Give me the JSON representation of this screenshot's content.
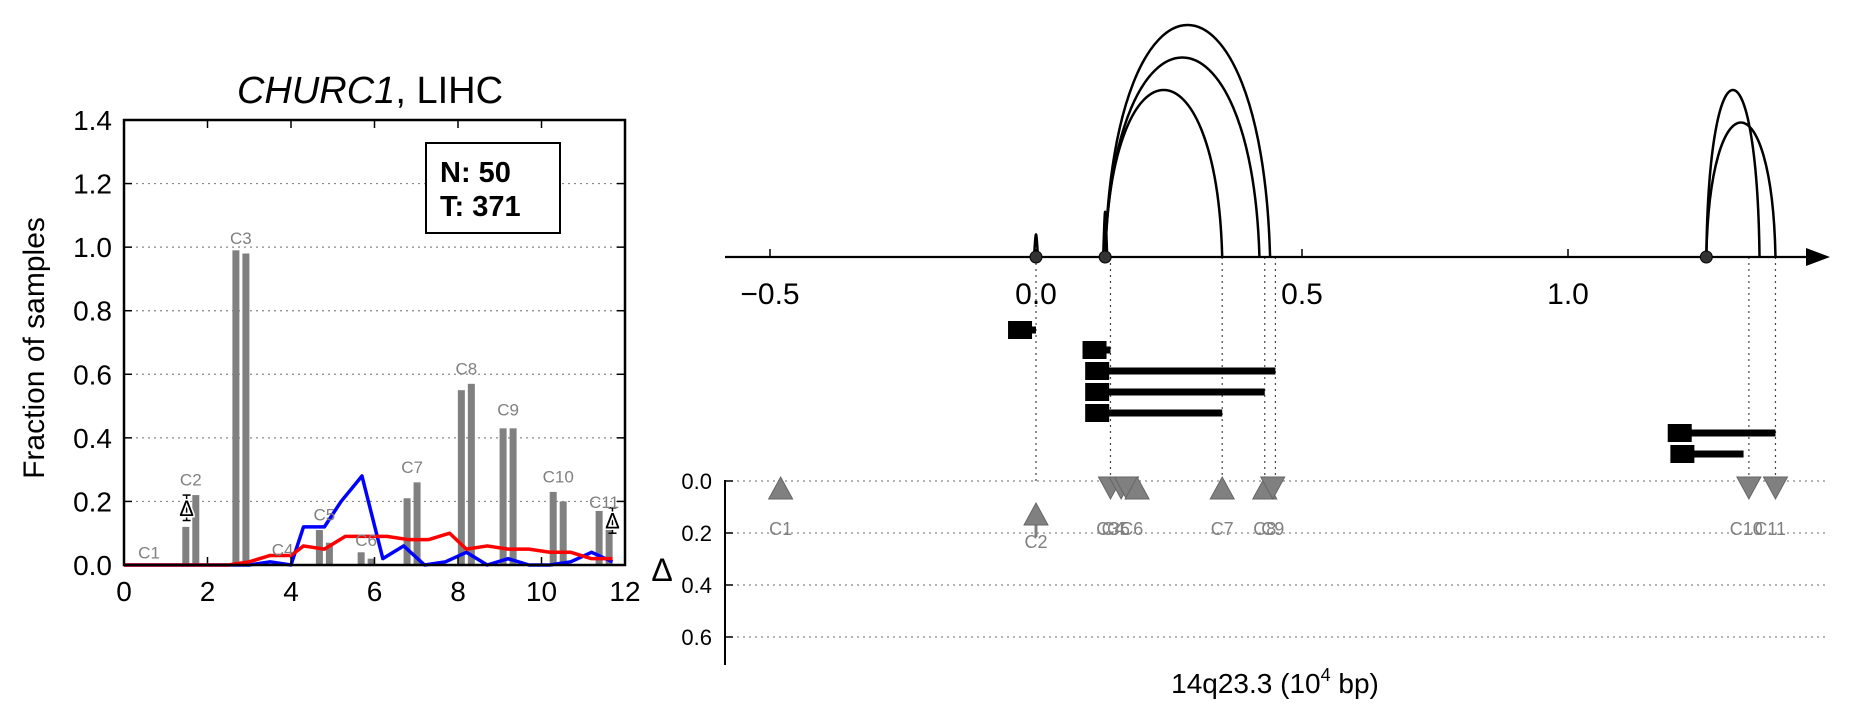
{
  "chart_data": [
    {
      "type": "bar",
      "title_gene": "CHURC1",
      "title_rest": ", LIHC",
      "ylabel": "Fraction of samples",
      "xlim": [
        0,
        12
      ],
      "ylim": [
        0,
        1.4
      ],
      "xticks": [
        "0",
        "2",
        "4",
        "6",
        "8",
        "10",
        "12"
      ],
      "yticks": [
        "0.0",
        "0.2",
        "0.4",
        "0.6",
        "0.8",
        "1.0",
        "1.2",
        "1.4"
      ],
      "grid": true,
      "legend_box": {
        "n_label": "N: 50",
        "t_label": "T: 371"
      },
      "categories": [
        "C1",
        "C2",
        "C3",
        "C4",
        "C5",
        "C6",
        "C7",
        "C8",
        "C9",
        "C10",
        "C11"
      ],
      "bars": [
        {
          "label": "C1",
          "x": 0.6,
          "n": 0.0,
          "t": 0.0,
          "label_y": 0.02
        },
        {
          "label": "C2",
          "x": 1.6,
          "n": 0.12,
          "t": 0.22,
          "label_y": 0.25
        },
        {
          "label": "C3",
          "x": 2.8,
          "n": 0.99,
          "t": 0.98,
          "label_y": 1.01
        },
        {
          "label": "C4",
          "x": 3.8,
          "n": 0.0,
          "t": 0.0,
          "label_y": 0.03
        },
        {
          "label": "C5",
          "x": 4.8,
          "n": 0.11,
          "t": 0.07,
          "label_y": 0.14
        },
        {
          "label": "C6",
          "x": 5.8,
          "n": 0.04,
          "t": 0.02,
          "label_y": 0.06
        },
        {
          "label": "C7",
          "x": 6.9,
          "n": 0.21,
          "t": 0.26,
          "label_y": 0.29
        },
        {
          "label": "C8",
          "x": 8.2,
          "n": 0.55,
          "t": 0.57,
          "label_y": 0.6
        },
        {
          "label": "C9",
          "x": 9.2,
          "n": 0.43,
          "t": 0.43,
          "label_y": 0.47
        },
        {
          "label": "C10",
          "x": 10.4,
          "n": 0.23,
          "t": 0.2,
          "label_y": 0.26
        },
        {
          "label": "C11",
          "x": 11.5,
          "n": 0.17,
          "t": 0.11,
          "label_y": 0.18
        }
      ],
      "delta_marks": [
        {
          "x": 1.5,
          "y": 0.18,
          "err": 0.04,
          "symbol": "Δ"
        },
        {
          "x": 11.7,
          "y": 0.14,
          "err": 0.04,
          "symbol": "Δ"
        }
      ],
      "series": [
        {
          "name": "",
          "color": "#0000ff",
          "x": [
            0,
            1,
            2,
            3,
            3.5,
            4,
            4.3,
            4.8,
            5.2,
            5.7,
            6.2,
            6.7,
            7.2,
            7.7,
            8.2,
            8.7,
            9.2,
            9.7,
            10.2,
            10.7,
            11.2,
            11.7
          ],
          "y": [
            0,
            0,
            0,
            0,
            0.01,
            0.0,
            0.12,
            0.12,
            0.2,
            0.28,
            0.02,
            0.06,
            0.0,
            0.01,
            0.04,
            0.0,
            0.02,
            0.0,
            0.0,
            0.01,
            0.04,
            0.01
          ]
        },
        {
          "name": "",
          "color": "#ff0000",
          "x": [
            0,
            1,
            2,
            2.5,
            3,
            3.5,
            4,
            4.3,
            4.8,
            5.3,
            5.8,
            6.3,
            6.8,
            7.3,
            7.8,
            8.2,
            8.7,
            9.2,
            9.7,
            10.2,
            10.7,
            11.2,
            11.7
          ],
          "y": [
            0,
            0,
            0,
            0,
            0.01,
            0.03,
            0.03,
            0.06,
            0.05,
            0.09,
            0.09,
            0.09,
            0.08,
            0.08,
            0.1,
            0.05,
            0.06,
            0.05,
            0.05,
            0.04,
            0.04,
            0.02,
            0.02
          ]
        }
      ]
    },
    {
      "type": "diagram",
      "xlabel_main": "14q23.3 (10",
      "xlabel_exp": "4",
      "xlabel_tail": " bp)",
      "xlim": [
        -0.6,
        1.5
      ],
      "xticks": [
        "−0.5",
        "0.0",
        "0.5",
        "1.0"
      ],
      "xtick_values": [
        -0.5,
        0.0,
        0.5,
        1.0
      ],
      "delta_axis_label": "Δ",
      "delta_ylim": [
        0,
        0.7
      ],
      "delta_yticks": [
        "0.0",
        "0.2",
        "0.4",
        "0.6"
      ],
      "delta_ytick_values": [
        0.0,
        0.2,
        0.4,
        0.6
      ],
      "junction_points": [
        0.0,
        0.13,
        1.26
      ],
      "spikes": [
        {
          "x": 0.0,
          "h": 0.1
        },
        {
          "x": 0.13,
          "h": 0.2
        }
      ],
      "arcs": [
        {
          "start": 0.13,
          "end": 0.44,
          "height": 1.0
        },
        {
          "start": 0.13,
          "end": 0.42,
          "height": 0.86
        },
        {
          "start": 0.13,
          "end": 0.35,
          "height": 0.72
        },
        {
          "start": 1.26,
          "end": 1.36,
          "height": 0.72
        },
        {
          "start": 1.26,
          "end": 1.39,
          "height": 0.58
        }
      ],
      "transcripts": [
        {
          "row": 0,
          "box": -0.03,
          "end": 0.0
        },
        {
          "row": 1,
          "box": 0.11,
          "end": 0.14
        },
        {
          "row": 2,
          "box": 0.115,
          "end": 0.45
        },
        {
          "row": 3,
          "box": 0.115,
          "end": 0.43
        },
        {
          "row": 4,
          "box": 0.115,
          "end": 0.35
        },
        {
          "row": 5,
          "box": 1.21,
          "end": 1.39
        },
        {
          "row": 6,
          "box": 1.215,
          "end": 1.33
        }
      ],
      "dotted_guides": [
        0.0,
        0.14,
        0.35,
        0.43,
        0.45,
        1.34,
        1.39
      ],
      "markers": [
        {
          "label": "C1",
          "x": -0.48,
          "dir": "up",
          "delta": 0.0
        },
        {
          "label": "C2",
          "x": 0.0,
          "dir": "up",
          "delta": 0.1
        },
        {
          "label": "C3",
          "x": 0.14,
          "dir": "down",
          "delta": 0.0
        },
        {
          "label": "C4",
          "x": 0.16,
          "dir": "down",
          "delta": 0.0
        },
        {
          "label": "C5",
          "x": 0.17,
          "dir": "down",
          "delta": 0.0
        },
        {
          "label": "C6",
          "x": 0.19,
          "dir": "up",
          "delta": 0.0
        },
        {
          "label": "C7",
          "x": 0.35,
          "dir": "up",
          "delta": 0.0
        },
        {
          "label": "C8",
          "x": 0.43,
          "dir": "up",
          "delta": 0.0
        },
        {
          "label": "C9",
          "x": 0.445,
          "dir": "down",
          "delta": 0.0
        },
        {
          "label": "C10",
          "x": 1.34,
          "dir": "down",
          "delta": 0.0
        },
        {
          "label": "C11",
          "x": 1.39,
          "dir": "down",
          "delta": 0.0
        }
      ],
      "marker_labels_shown": [
        {
          "text": "C1",
          "x": -0.48,
          "row": 0
        },
        {
          "text": "C2",
          "x": 0.0,
          "row": 1
        },
        {
          "text": "C3",
          "x": 0.135,
          "row": 0
        },
        {
          "text": "C4",
          "x": 0.145,
          "row": 0
        },
        {
          "text": "C5",
          "x": 0.155,
          "row": 0
        },
        {
          "text": "C6",
          "x": 0.18,
          "row": 0
        },
        {
          "text": "C7",
          "x": 0.35,
          "row": 0
        },
        {
          "text": "C8",
          "x": 0.43,
          "row": 0
        },
        {
          "text": "C9",
          "x": 0.445,
          "row": 0
        },
        {
          "text": "C10",
          "x": 1.335,
          "row": 0
        },
        {
          "text": "C11",
          "x": 1.38,
          "row": 0
        }
      ]
    }
  ]
}
